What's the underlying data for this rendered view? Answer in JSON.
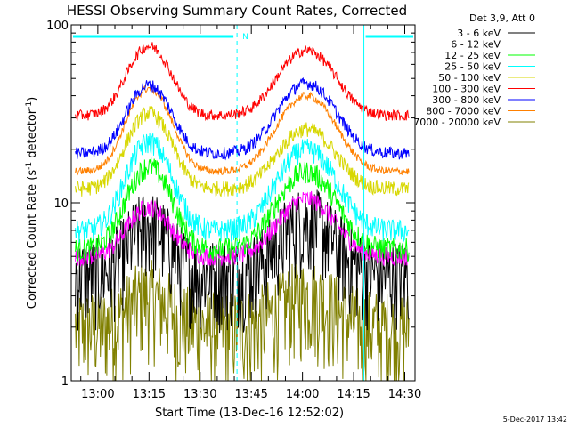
{
  "chart_data": {
    "type": "line",
    "title": "HESSI Observing Summary Count Rates, Corrected",
    "xlabel": "Start Time (13-Dec-16 12:52:02)",
    "ylabel": "Corrected Count Rate (s",
    "ylabel_sup": "-1",
    "ylabel_mid": " detector",
    "ylabel_sup2": "-1",
    "ylabel_end": ")",
    "y_scale": "log",
    "ylim": [
      1,
      100
    ],
    "y_ticks": [
      "1",
      "10",
      "100"
    ],
    "x_range_minutes": [
      12.87,
      14.55
    ],
    "x_ticks": [
      "13:00",
      "13:15",
      "13:30",
      "13:45",
      "14:00",
      "14:15",
      "14:30"
    ],
    "grid": false,
    "legend_position": "right",
    "legend_header": "Det 3,9, Att 0",
    "series": [
      {
        "name": "3 - 6 keV",
        "color": "#000000",
        "base": 4.0,
        "peak1": 7.5,
        "peak2": 8.0,
        "noise": 0.55
      },
      {
        "name": "6 - 12 keV",
        "color": "#ff00ff",
        "base": 5.0,
        "peak1": 9.5,
        "peak2": 10.5,
        "noise": 0.12
      },
      {
        "name": "12 - 25 keV",
        "color": "#00ff00",
        "base": 5.5,
        "peak1": 16.0,
        "peak2": 15.0,
        "noise": 0.15
      },
      {
        "name": "25 - 50 keV",
        "color": "#00ffff",
        "base": 7.0,
        "peak1": 22.0,
        "peak2": 20.0,
        "noise": 0.15
      },
      {
        "name": "50 - 100 keV",
        "color": "#d7d700",
        "base": 12.0,
        "peak1": 32.0,
        "peak2": 26.0,
        "noise": 0.1
      },
      {
        "name": "100 - 300 keV",
        "color": "#ff0000",
        "base": 31.0,
        "peak1": 76.0,
        "peak2": 72.0,
        "noise": 0.07
      },
      {
        "name": "300 - 800 keV",
        "color": "#0000ff",
        "base": 19.0,
        "peak1": 46.0,
        "peak2": 47.0,
        "noise": 0.08
      },
      {
        "name": "800 - 7000 keV",
        "color": "#ff8000",
        "base": 15.0,
        "peak1": 44.0,
        "peak2": 40.0,
        "noise": 0.05
      },
      {
        "name": "7000 - 20000 keV",
        "color": "#808000",
        "base": 2.0,
        "peak1": 3.0,
        "peak2": 3.0,
        "noise": 0.6
      }
    ],
    "annotations": [
      {
        "label": "N",
        "color": "#00ffff"
      }
    ]
  },
  "footer": {
    "timestamp": "5-Dec-2017 13:42"
  }
}
